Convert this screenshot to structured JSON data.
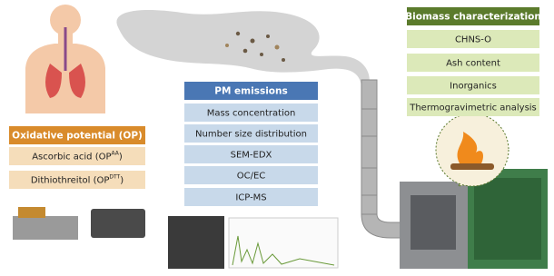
{
  "biomass": {
    "title": "Biomass characterization",
    "items": [
      "CHNS-O",
      "Ash content",
      "Inorganics",
      "Thermogravimetric analysis"
    ]
  },
  "pm": {
    "title": "PM emissions",
    "items": [
      "Mass concentration",
      "Number size distribution",
      "SEM-EDX",
      "OC/EC",
      "ICP-MS"
    ]
  },
  "op": {
    "title": "Oxidative potential (OP)",
    "items": [
      {
        "text": "Ascorbic acid (OP",
        "sup": "AA",
        "tail": ")"
      },
      {
        "text": "Dithiothreitol (OP",
        "sup": "DTT",
        "tail": ")"
      }
    ]
  }
}
